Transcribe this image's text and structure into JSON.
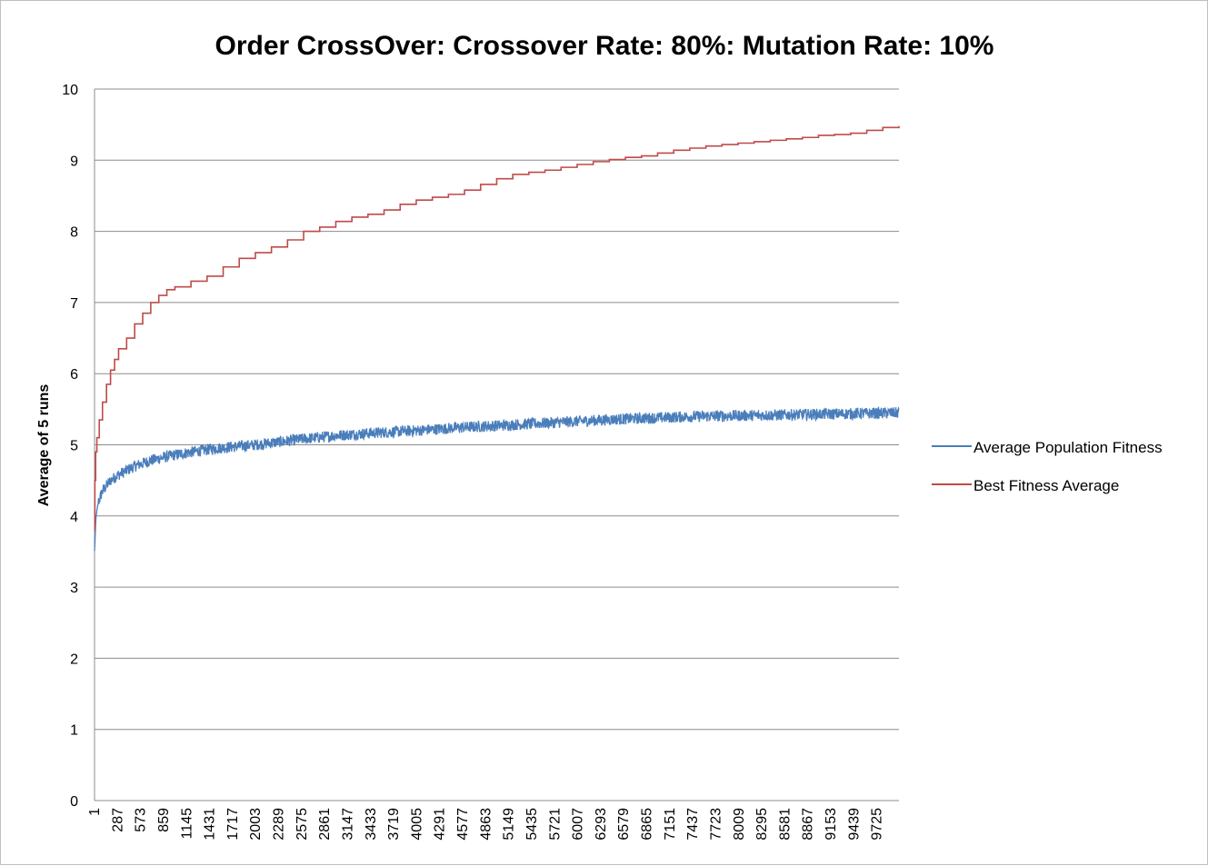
{
  "chart_data": {
    "type": "line",
    "title": "Order CrossOver: Crossover Rate: 80%: Mutation Rate: 10%",
    "xlabel": "",
    "ylabel": "Average of 5 runs",
    "ylim": [
      0,
      10
    ],
    "yticks": [
      "0",
      "1",
      "2",
      "3",
      "4",
      "5",
      "6",
      "7",
      "8",
      "9",
      "10"
    ],
    "xlim": [
      1,
      10000
    ],
    "xticks": [
      "1",
      "287",
      "573",
      "859",
      "1145",
      "1431",
      "1717",
      "2003",
      "2289",
      "2575",
      "2861",
      "3147",
      "3433",
      "3719",
      "4005",
      "4291",
      "4577",
      "4863",
      "5149",
      "5435",
      "5721",
      "6007",
      "6293",
      "6579",
      "6865",
      "7151",
      "7437",
      "7723",
      "8009",
      "8295",
      "8581",
      "8867",
      "9153",
      "9439",
      "9725"
    ],
    "grid": true,
    "legend_position": "right",
    "series": [
      {
        "name": "Average Population Fitness",
        "color": "#4a7ebb",
        "noise_amplitude": 0.08,
        "x": [
          1,
          20,
          50,
          100,
          200,
          300,
          500,
          700,
          1000,
          1500,
          2000,
          2500,
          3000,
          3500,
          4000,
          4500,
          5000,
          5500,
          6000,
          6500,
          7000,
          7500,
          8000,
          8500,
          9000,
          9500,
          10000
        ],
        "y": [
          3.5,
          4.0,
          4.2,
          4.35,
          4.5,
          4.58,
          4.7,
          4.78,
          4.86,
          4.95,
          5.0,
          5.07,
          5.13,
          5.17,
          5.2,
          5.24,
          5.27,
          5.3,
          5.33,
          5.36,
          5.38,
          5.4,
          5.41,
          5.42,
          5.43,
          5.44,
          5.45
        ]
      },
      {
        "name": "Best Fitness Average",
        "color": "#be4b48",
        "x": [
          1,
          5,
          15,
          30,
          60,
          100,
          150,
          200,
          250,
          300,
          400,
          500,
          600,
          700,
          800,
          900,
          1000,
          1200,
          1400,
          1600,
          1800,
          2000,
          2200,
          2400,
          2600,
          2800,
          3000,
          3200,
          3400,
          3600,
          3800,
          4000,
          4200,
          4400,
          4600,
          4800,
          5000,
          5200,
          5400,
          5600,
          5800,
          6000,
          6200,
          6400,
          6600,
          6800,
          7000,
          7200,
          7400,
          7600,
          7800,
          8000,
          8200,
          8400,
          8600,
          8800,
          9000,
          9200,
          9400,
          9600,
          9800,
          10000
        ],
        "y": [
          3.8,
          4.5,
          4.9,
          5.1,
          5.35,
          5.6,
          5.85,
          6.05,
          6.2,
          6.35,
          6.5,
          6.7,
          6.85,
          7.0,
          7.1,
          7.18,
          7.22,
          7.3,
          7.37,
          7.5,
          7.62,
          7.7,
          7.78,
          7.88,
          8.0,
          8.06,
          8.14,
          8.2,
          8.24,
          8.3,
          8.38,
          8.44,
          8.48,
          8.52,
          8.58,
          8.66,
          8.74,
          8.8,
          8.83,
          8.86,
          8.9,
          8.94,
          8.98,
          9.01,
          9.04,
          9.06,
          9.1,
          9.14,
          9.17,
          9.2,
          9.22,
          9.24,
          9.26,
          9.28,
          9.3,
          9.32,
          9.35,
          9.36,
          9.38,
          9.42,
          9.46,
          9.48
        ]
      }
    ]
  }
}
